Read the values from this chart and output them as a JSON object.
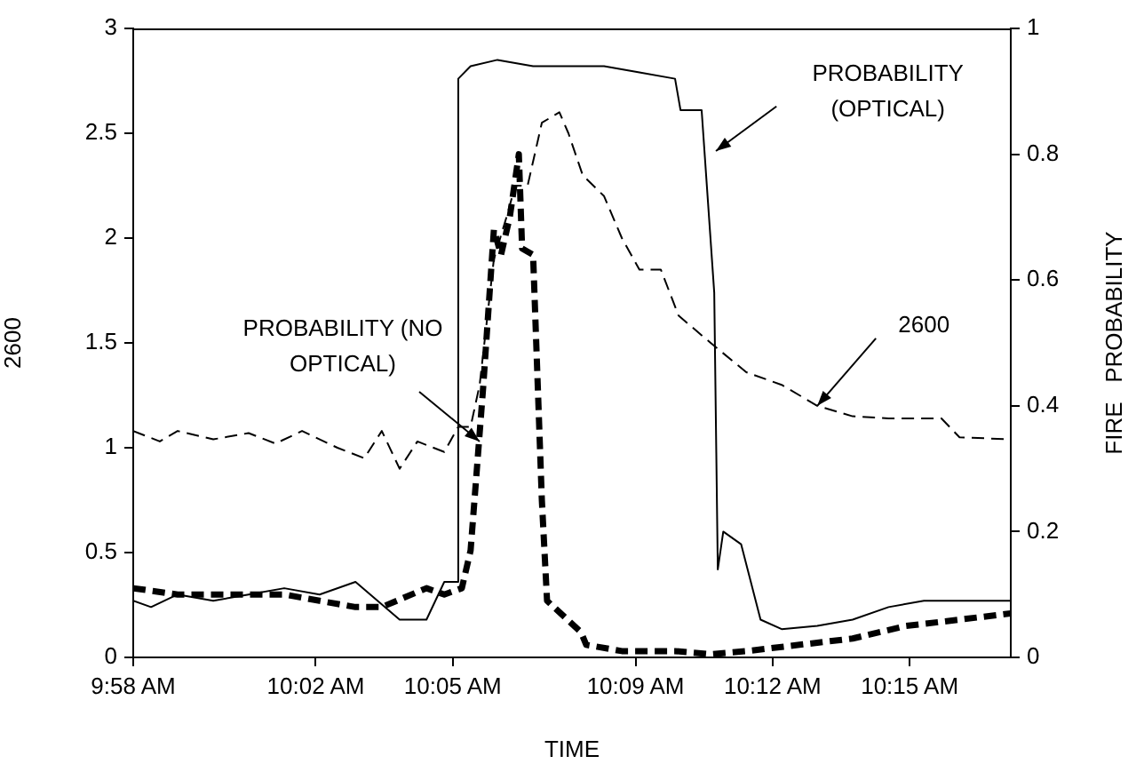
{
  "chart_data": {
    "type": "line",
    "xlabel": "TIME",
    "ylabel": "2600",
    "y2label": "FIRE   PROBABILITY",
    "xlim": [
      9.9667,
      10.2869
    ],
    "xticks": [
      {
        "value": 9.9667,
        "label": "9:58 AM"
      },
      {
        "value": 10.0333,
        "label": "10:02 AM"
      },
      {
        "value": 10.0833,
        "label": "10:05 AM"
      },
      {
        "value": 10.15,
        "label": "10:09 AM"
      },
      {
        "value": 10.2,
        "label": "10:12 AM"
      },
      {
        "value": 10.25,
        "label": "10:15 AM"
      }
    ],
    "ylim": [
      0,
      3
    ],
    "yticks": [
      0,
      0.5,
      1,
      1.5,
      2,
      2.5,
      3
    ],
    "y2lim": [
      0,
      1
    ],
    "y2ticks": [
      0,
      0.2,
      0.4,
      0.6,
      0.8,
      1
    ],
    "grid": false,
    "legend": false,
    "marker": "none",
    "series": [
      {
        "color": "#000000",
        "line_style": "dashed",
        "x": [
          9.9667,
          9.9764,
          9.9829,
          9.9959,
          10.0088,
          10.0186,
          10.0283,
          10.0412,
          10.051,
          10.0574,
          10.0639,
          10.0704,
          10.0802,
          10.0853,
          10.0898,
          10.0931,
          10.0983,
          10.1029,
          10.1061,
          10.1106,
          10.1158,
          10.1222,
          10.1255,
          10.1307,
          10.1385,
          10.145,
          10.1514,
          10.1592,
          10.1657,
          10.1774,
          10.1904,
          10.2033,
          10.2163,
          10.2292,
          10.2423,
          10.2616,
          10.2682,
          10.2869
        ],
        "values": [
          1.08,
          1.03,
          1.08,
          1.04,
          1.07,
          1.02,
          1.08,
          1.0,
          0.95,
          1.08,
          0.9,
          1.03,
          0.98,
          1.1,
          1.1,
          1.3,
          1.9,
          2.1,
          2.25,
          2.25,
          2.55,
          2.6,
          2.5,
          2.3,
          2.2,
          2.0,
          1.85,
          1.85,
          1.63,
          1.5,
          1.36,
          1.3,
          1.2,
          1.15,
          1.14,
          1.14,
          1.05,
          1.04
        ]
      },
      {
        "color": "#000000",
        "line_style": "solid",
        "axis": "y2",
        "x": [
          9.9667,
          9.9732,
          9.9829,
          9.9959,
          10.0088,
          10.0218,
          10.0347,
          10.0478,
          10.0639,
          10.0737,
          10.0802,
          10.0847,
          10.0853,
          10.0898,
          10.0996,
          10.1126,
          10.1255,
          10.1385,
          10.1514,
          10.1644,
          10.1664,
          10.1741,
          10.1787,
          10.18,
          10.182,
          10.1885,
          10.1956,
          10.2033,
          10.2163,
          10.2292,
          10.2423,
          10.2552,
          10.2682,
          10.2869
        ],
        "values": [
          0.09,
          0.08,
          0.1,
          0.09,
          0.1,
          0.11,
          0.1,
          0.12,
          0.06,
          0.06,
          0.12,
          0.12,
          0.92,
          0.94,
          0.95,
          0.94,
          0.94,
          0.94,
          0.93,
          0.92,
          0.87,
          0.87,
          0.58,
          0.14,
          0.2,
          0.18,
          0.06,
          0.045,
          0.05,
          0.06,
          0.08,
          0.09,
          0.09,
          0.09
        ]
      },
      {
        "color": "#000000",
        "line_style": "dashed",
        "axis": "y2",
        "x": [
          9.9667,
          9.9829,
          10.0023,
          10.0218,
          10.0347,
          10.0478,
          10.0574,
          10.0737,
          10.0802,
          10.0866,
          10.0898,
          10.0944,
          10.0983,
          10.1009,
          10.1041,
          10.1074,
          10.1086,
          10.1126,
          10.1158,
          10.1177,
          10.1301,
          10.132,
          10.145,
          10.1644,
          10.1774,
          10.1904,
          10.2098,
          10.2292,
          10.2487,
          10.2682,
          10.2869
        ],
        "values": [
          0.11,
          0.1,
          0.1,
          0.1,
          0.09,
          0.08,
          0.08,
          0.11,
          0.1,
          0.11,
          0.17,
          0.43,
          0.68,
          0.64,
          0.7,
          0.8,
          0.65,
          0.64,
          0.25,
          0.09,
          0.04,
          0.02,
          0.01,
          0.01,
          0.005,
          0.01,
          0.02,
          0.03,
          0.05,
          0.06,
          0.07
        ]
      }
    ],
    "annotations": [
      {
        "text": "PROBABILITY (NO\nOPTICAL)",
        "x": 10.0931,
        "y": 1.03
      },
      "PROBABILITY\n(OPTICAL)",
      {
        "text": "2600",
        "x": 10.2163,
        "y": 1.2
      }
    ]
  }
}
